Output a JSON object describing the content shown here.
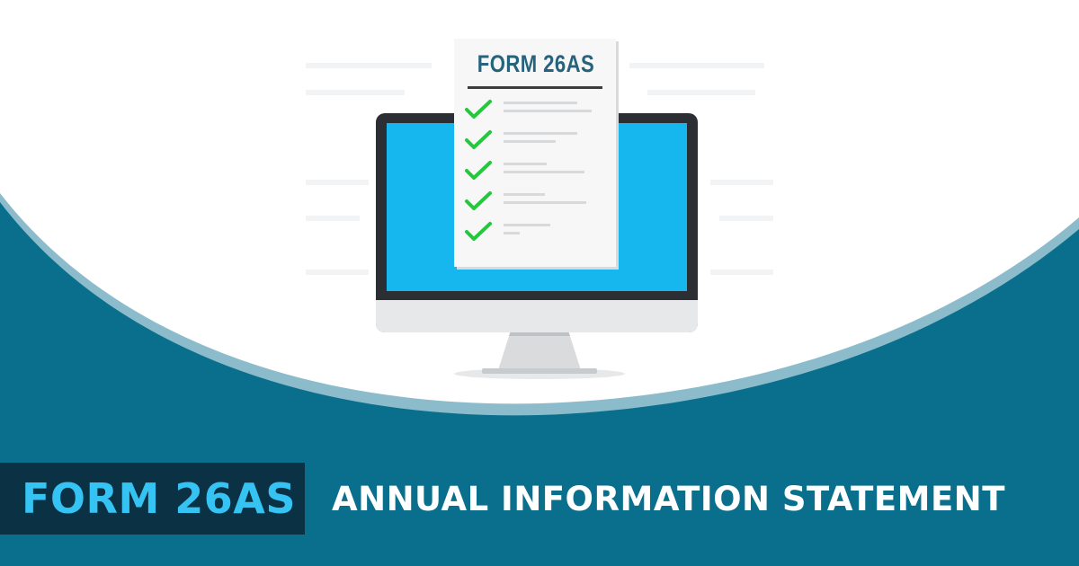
{
  "document": {
    "title": "FORM 26AS",
    "checkmark_count": 5
  },
  "banner": {
    "badge_text": "FORM 26AS",
    "subtitle": "ANNUAL INFORMATION STATEMENT"
  },
  "colors": {
    "teal_background": "#0a6f8c",
    "badge_background": "#0a3144",
    "badge_text": "#35c3f3",
    "screen_blue": "#16b6ee",
    "check_green": "#22c93a",
    "doc_title": "#27637c"
  }
}
